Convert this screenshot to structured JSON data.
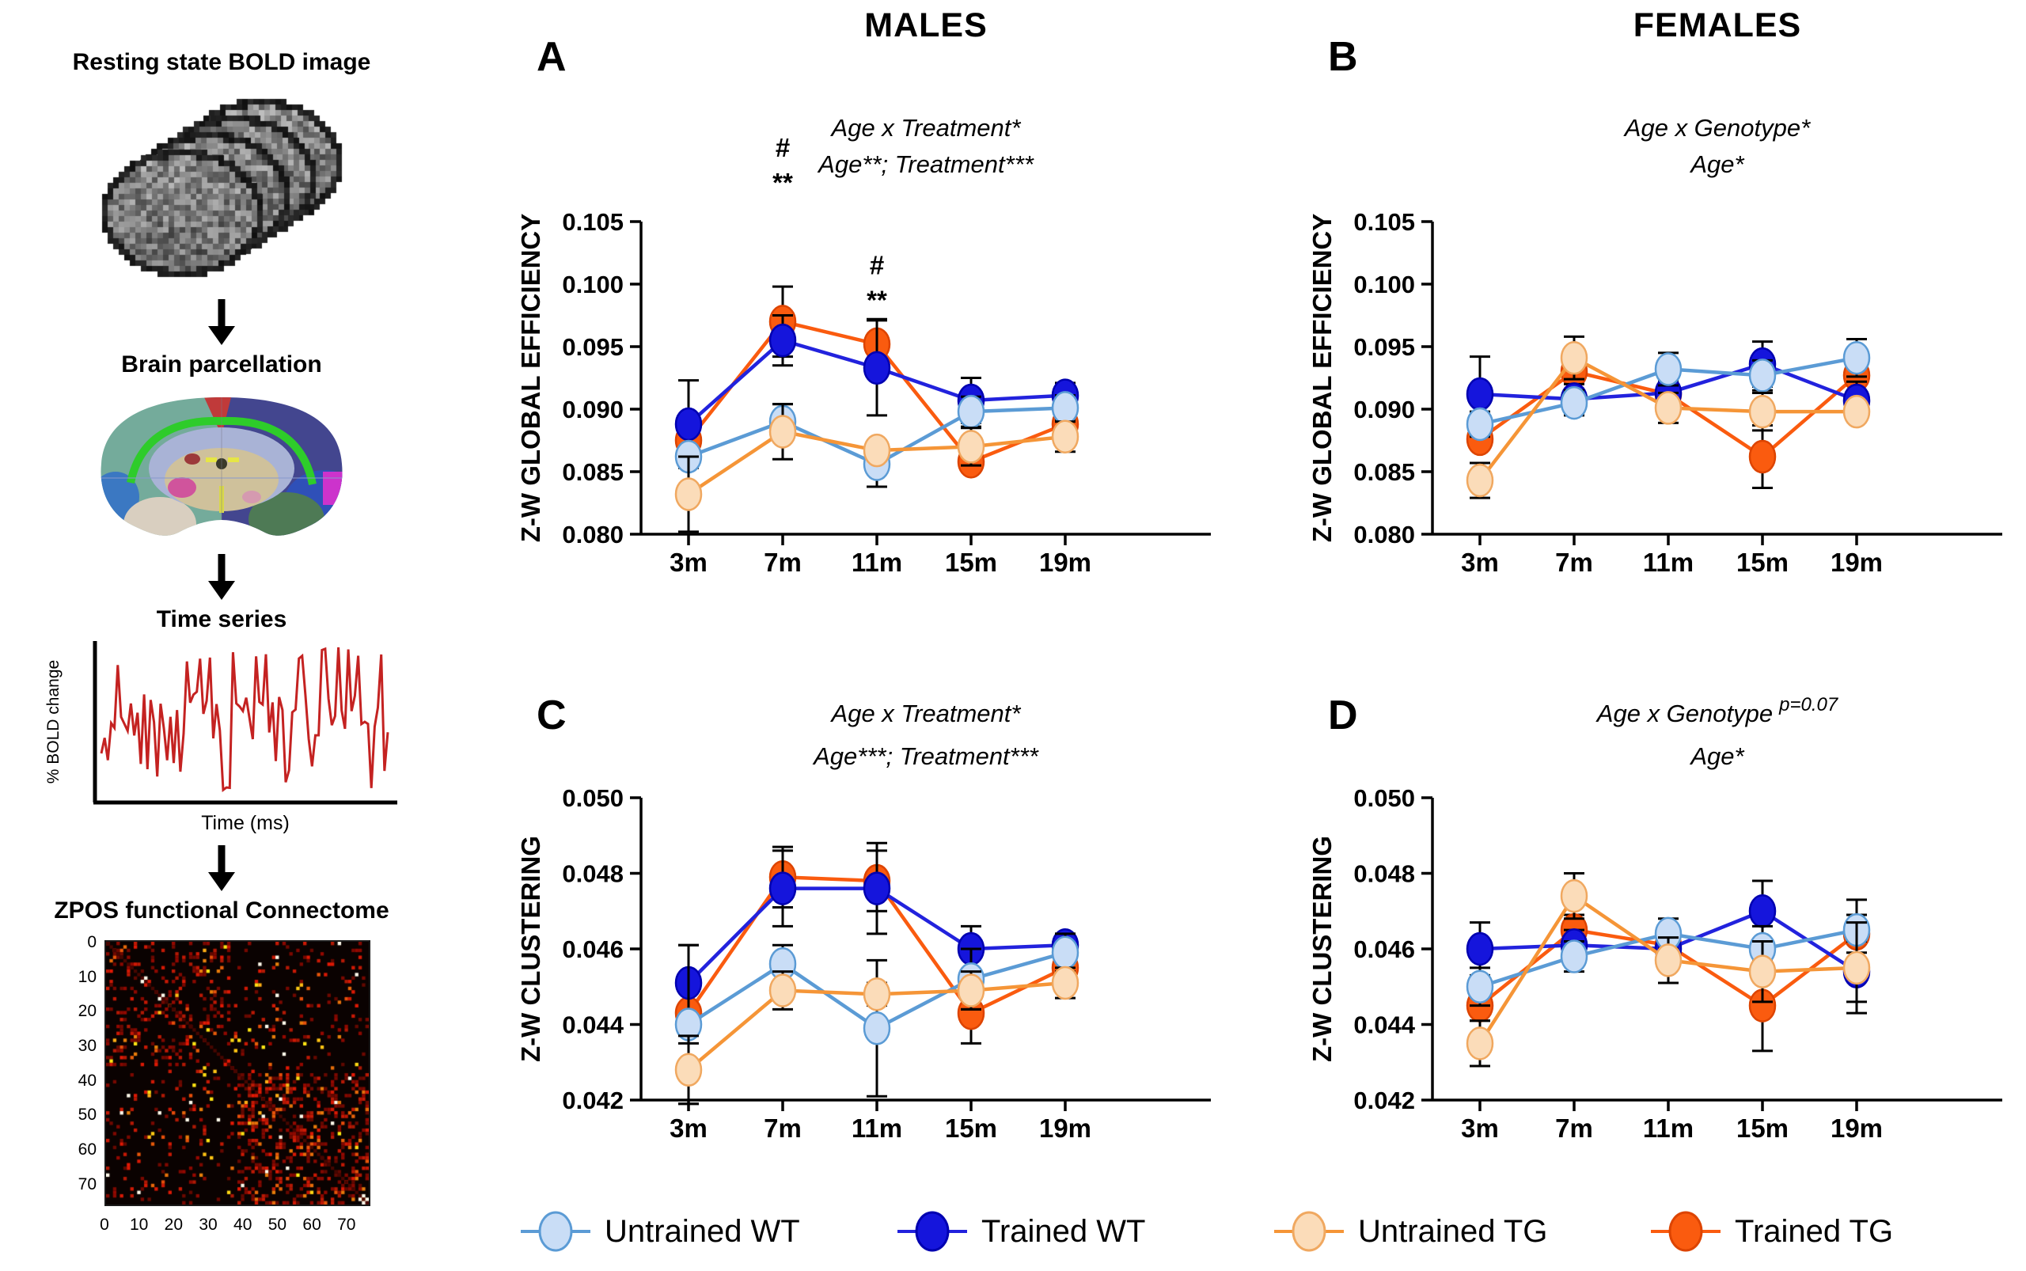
{
  "columns": {
    "males": "MALES",
    "females": "FEMALES"
  },
  "pipeline": {
    "step1_title": "Resting state BOLD image",
    "step2_title": "Brain parcellation",
    "step3_title": "Time series",
    "timeseries": {
      "ylabel": "% BOLD change",
      "xlabel": "Time (ms)"
    },
    "step4_title": "ZPOS functional Connectome",
    "connectome": {
      "y_ticks": [
        "0",
        "10",
        "20",
        "30",
        "40",
        "50",
        "60",
        "70"
      ],
      "x_ticks": [
        "0",
        "10",
        "20",
        "30",
        "40",
        "50",
        "60",
        "70"
      ],
      "size": 76
    }
  },
  "colors": {
    "untrained_wt": {
      "fill": "#C9DDF6",
      "stroke": "#5B9BD5",
      "line": "#5B9BD5"
    },
    "trained_wt": {
      "fill": "#1515DC",
      "stroke": "#0000B0",
      "line": "#2222DD"
    },
    "untrained_tg": {
      "fill": "#FBDCB9",
      "stroke": "#F0A860",
      "line": "#F59537"
    },
    "trained_tg": {
      "fill": "#FA5B0F",
      "stroke": "#DD4400",
      "line": "#FA5B0F"
    },
    "timeseries_line": "#C42221",
    "axis": "#000000"
  },
  "legend": {
    "items": [
      {
        "key": "untrained_wt",
        "label": "Untrained WT"
      },
      {
        "key": "trained_wt",
        "label": "Trained WT"
      },
      {
        "key": "untrained_tg",
        "label": "Untrained TG"
      },
      {
        "key": "trained_tg",
        "label": "Trained TG"
      }
    ]
  },
  "chart_data": [
    {
      "type": "line",
      "panel": "A",
      "column": "MALES",
      "title_lines": [
        {
          "text": "Age x Treatment*",
          "sup": ""
        },
        {
          "text": "Age**; Treatment***",
          "sup": ""
        }
      ],
      "ylabel": "Z-W GLOBAL EFFICIENCY",
      "ylim": [
        0.08,
        0.105
      ],
      "yticks": [
        0.08,
        0.085,
        0.09,
        0.095,
        0.1,
        0.105
      ],
      "ytick_labels": [
        "0.080",
        "0.085",
        "0.090",
        "0.095",
        "0.100",
        "0.105"
      ],
      "categories": [
        "3m",
        "7m",
        "11m",
        "15m",
        "19m"
      ],
      "series": [
        {
          "key": "trained_tg",
          "name": "Trained TG",
          "values": [
            0.0875,
            0.097,
            0.0952,
            0.0858,
            0.0888
          ],
          "errors": [
            0.0015,
            0.0028,
            0.002,
            0.0008,
            0.001
          ]
        },
        {
          "key": "trained_wt",
          "name": "Trained WT",
          "values": [
            0.0888,
            0.0955,
            0.0933,
            0.0907,
            0.0911
          ],
          "errors": [
            0.0035,
            0.002,
            0.0038,
            0.0018,
            0.001
          ]
        },
        {
          "key": "untrained_wt",
          "name": "Untrained WT",
          "values": [
            0.0862,
            0.089,
            0.0856,
            0.0898,
            0.0901
          ],
          "errors": [
            0.0008,
            0.0014,
            0.0018,
            0.0012,
            0.001
          ]
        },
        {
          "key": "untrained_tg",
          "name": "Untrained TG",
          "values": [
            0.0832,
            0.0882,
            0.0867,
            0.087,
            0.0878
          ],
          "errors": [
            0.003,
            0.0022,
            0.0008,
            0.0015,
            0.0012
          ]
        }
      ],
      "annotations": [
        {
          "x_index": 1,
          "lines": [
            "#",
            "**"
          ],
          "y_value": 0.1102
        },
        {
          "x_index": 2,
          "lines": [
            "#",
            "**"
          ],
          "y_value": 0.1008
        }
      ]
    },
    {
      "type": "line",
      "panel": "B",
      "column": "FEMALES",
      "title_lines": [
        {
          "text": "Age x Genotype*",
          "sup": ""
        },
        {
          "text": "Age*",
          "sup": ""
        }
      ],
      "ylabel": "Z-W GLOBAL EFFICIENCY",
      "ylim": [
        0.08,
        0.105
      ],
      "yticks": [
        0.08,
        0.085,
        0.09,
        0.095,
        0.1,
        0.105
      ],
      "ytick_labels": [
        "0.080",
        "0.085",
        "0.090",
        "0.095",
        "0.100",
        "0.105"
      ],
      "categories": [
        "3m",
        "7m",
        "11m",
        "15m",
        "19m"
      ],
      "series": [
        {
          "key": "trained_tg",
          "name": "Trained TG",
          "values": [
            0.0876,
            0.093,
            0.0912,
            0.0862,
            0.0927
          ],
          "errors": [
            0.0008,
            0.0008,
            0.001,
            0.0025,
            0.0012
          ]
        },
        {
          "key": "trained_wt",
          "name": "Trained WT",
          "values": [
            0.0912,
            0.0908,
            0.0913,
            0.0936,
            0.0907
          ],
          "errors": [
            0.003,
            0.0012,
            0.001,
            0.0018,
            0.0015
          ]
        },
        {
          "key": "untrained_wt",
          "name": "Untrained WT",
          "values": [
            0.0888,
            0.0905,
            0.0932,
            0.0927,
            0.0941
          ],
          "errors": [
            0.001,
            0.001,
            0.0013,
            0.0012,
            0.0015
          ]
        },
        {
          "key": "untrained_tg",
          "name": "Untrained TG",
          "values": [
            0.0843,
            0.0941,
            0.0901,
            0.0898,
            0.0898
          ],
          "errors": [
            0.0014,
            0.0017,
            0.0012,
            0.0015,
            0.0008
          ]
        }
      ],
      "annotations": []
    },
    {
      "type": "line",
      "panel": "C",
      "column": "MALES",
      "title_lines": [
        {
          "text": "Age x Treatment*",
          "sup": ""
        },
        {
          "text": "Age***; Treatment***",
          "sup": ""
        }
      ],
      "ylabel": "Z-W CLUSTERING",
      "ylim": [
        0.042,
        0.05
      ],
      "yticks": [
        0.042,
        0.044,
        0.046,
        0.048,
        0.05
      ],
      "ytick_labels": [
        "0.042",
        "0.044",
        "0.046",
        "0.048",
        "0.050"
      ],
      "categories": [
        "3m",
        "7m",
        "11m",
        "15m",
        "19m"
      ],
      "series": [
        {
          "key": "trained_tg",
          "name": "Trained TG",
          "values": [
            0.0443,
            0.0479,
            0.0478,
            0.0443,
            0.0455
          ],
          "errors": [
            0.0008,
            0.0008,
            0.0008,
            0.0008,
            0.0004
          ]
        },
        {
          "key": "trained_wt",
          "name": "Trained WT",
          "values": [
            0.0451,
            0.0476,
            0.0476,
            0.046,
            0.0461
          ],
          "errors": [
            0.001,
            0.001,
            0.0012,
            0.0006,
            0.0003
          ]
        },
        {
          "key": "untrained_wt",
          "name": "Untrained WT",
          "values": [
            0.044,
            0.0456,
            0.0439,
            0.0452,
            0.0459
          ],
          "errors": [
            0.0021,
            0.0005,
            0.0018,
            0.0008,
            0.0005
          ]
        },
        {
          "key": "untrained_tg",
          "name": "Untrained TG",
          "values": [
            0.0428,
            0.0449,
            0.0448,
            0.0449,
            0.0451
          ],
          "errors": [
            0.0009,
            0.0005,
            0.0003,
            0.0005,
            0.0004
          ]
        }
      ],
      "annotations": []
    },
    {
      "type": "line",
      "panel": "D",
      "column": "FEMALES",
      "title_lines": [
        {
          "text": "Age x Genotype",
          "sup": "p=0.07"
        },
        {
          "text": "Age*",
          "sup": ""
        }
      ],
      "ylabel": "Z-W CLUSTERING",
      "ylim": [
        0.042,
        0.05
      ],
      "yticks": [
        0.042,
        0.044,
        0.046,
        0.048,
        0.05
      ],
      "ytick_labels": [
        "0.042",
        "0.044",
        "0.046",
        "0.048",
        "0.050"
      ],
      "categories": [
        "3m",
        "7m",
        "11m",
        "15m",
        "19m"
      ],
      "series": [
        {
          "key": "trained_tg",
          "name": "Trained TG",
          "values": [
            0.0445,
            0.0465,
            0.0461,
            0.0445,
            0.0464
          ],
          "errors": [
            0.0004,
            0.0004,
            0.0004,
            0.0012,
            0.0005
          ]
        },
        {
          "key": "trained_wt",
          "name": "Trained WT",
          "values": [
            0.046,
            0.0461,
            0.046,
            0.047,
            0.0454
          ],
          "errors": [
            0.0007,
            0.0004,
            0.0004,
            0.0008,
            0.0008
          ]
        },
        {
          "key": "untrained_wt",
          "name": "Untrained WT",
          "values": [
            0.045,
            0.0458,
            0.0464,
            0.046,
            0.0465
          ],
          "errors": [
            0.0005,
            0.0004,
            0.0004,
            0.0006,
            0.0008
          ]
        },
        {
          "key": "untrained_tg",
          "name": "Untrained TG",
          "values": [
            0.0435,
            0.0474,
            0.0457,
            0.0454,
            0.0455
          ],
          "errors": [
            0.0006,
            0.0006,
            0.0006,
            0.0008,
            0.0012
          ]
        }
      ],
      "annotations": []
    }
  ]
}
